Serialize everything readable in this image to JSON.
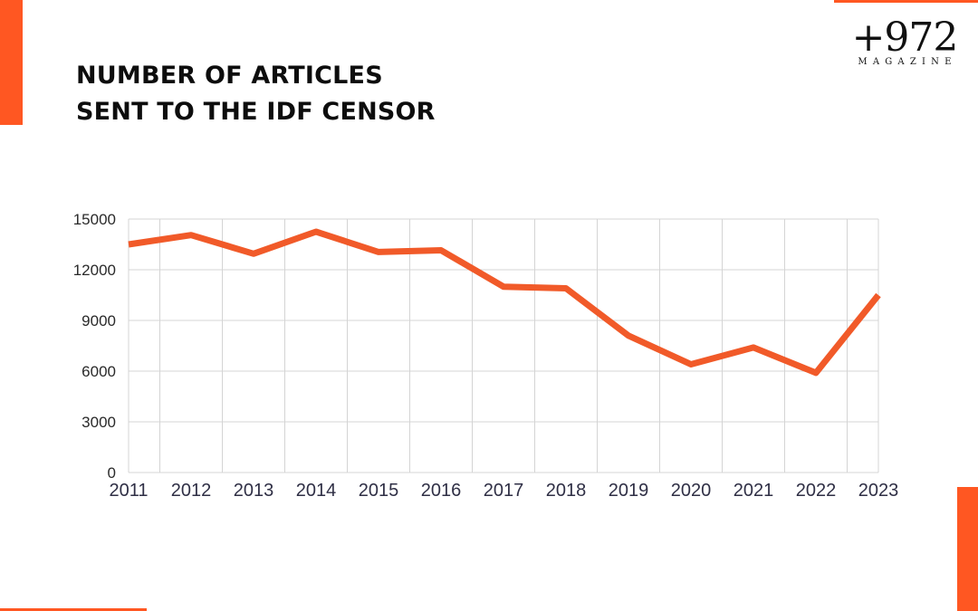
{
  "title": {
    "line1": "NUMBER OF ARTICLES",
    "line2": "SENT TO THE IDF CENSOR"
  },
  "logo": {
    "mark": "+972",
    "sub": "MAGAZINE"
  },
  "colors": {
    "accent": "#ff5722",
    "line": "#f15a29",
    "grid": "#d4d4d4",
    "text": "#0d0d0d"
  },
  "chart_data": {
    "type": "line",
    "title": "NUMBER OF ARTICLES SENT TO THE IDF CENSOR",
    "xlabel": "",
    "ylabel": "",
    "categories": [
      "2011",
      "2012",
      "2013",
      "2014",
      "2015",
      "2016",
      "2017",
      "2018",
      "2019",
      "2020",
      "2021",
      "2022",
      "2023"
    ],
    "series": [
      {
        "values": [
          13500,
          14050,
          12950,
          14250,
          13050,
          13150,
          11000,
          10900,
          8100,
          6400,
          7400,
          5900,
          10500
        ]
      }
    ],
    "yticks": [
      0,
      3000,
      6000,
      9000,
      12000,
      15000
    ],
    "ylim": [
      0,
      15000
    ],
    "grid": true,
    "legend": "none"
  }
}
